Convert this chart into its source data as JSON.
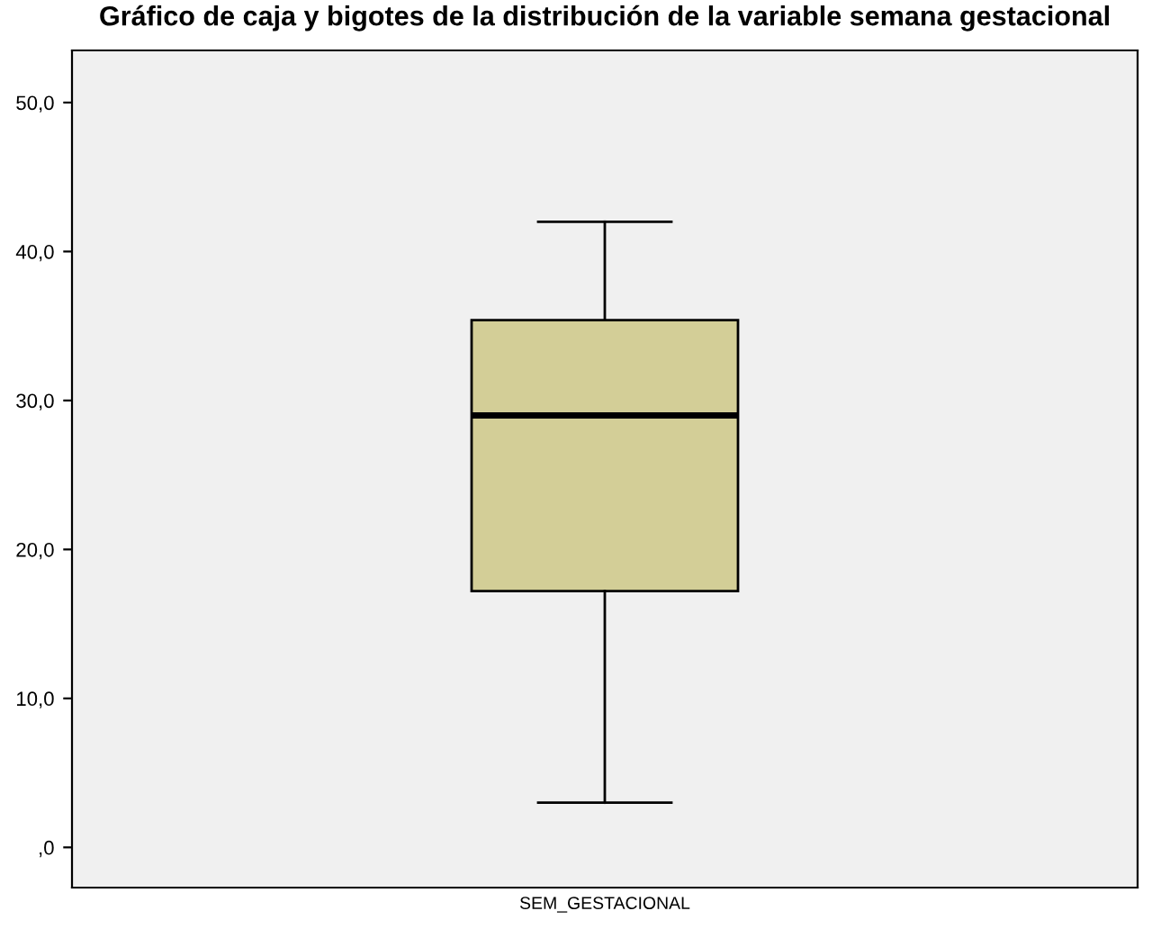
{
  "chart_data": {
    "type": "box",
    "title": "Gráfico de caja y bigotes de la distribución de la variable semana gestacional",
    "categories": [
      "SEM_GESTACIONAL"
    ],
    "boxes": [
      {
        "low": 3,
        "q1": 17.2,
        "median": 29,
        "q3": 35.4,
        "high": 42
      }
    ],
    "color": "#d3ce97",
    "ylim": [
      -2.7,
      53.5
    ],
    "yticks": [
      {
        "value": 0,
        "label": ",0"
      },
      {
        "value": 10,
        "label": "10,0"
      },
      {
        "value": 20,
        "label": "20,0"
      },
      {
        "value": 30,
        "label": "30,0"
      },
      {
        "value": 40,
        "label": "40,0"
      },
      {
        "value": 50,
        "label": "50,0"
      }
    ],
    "grid": false
  }
}
